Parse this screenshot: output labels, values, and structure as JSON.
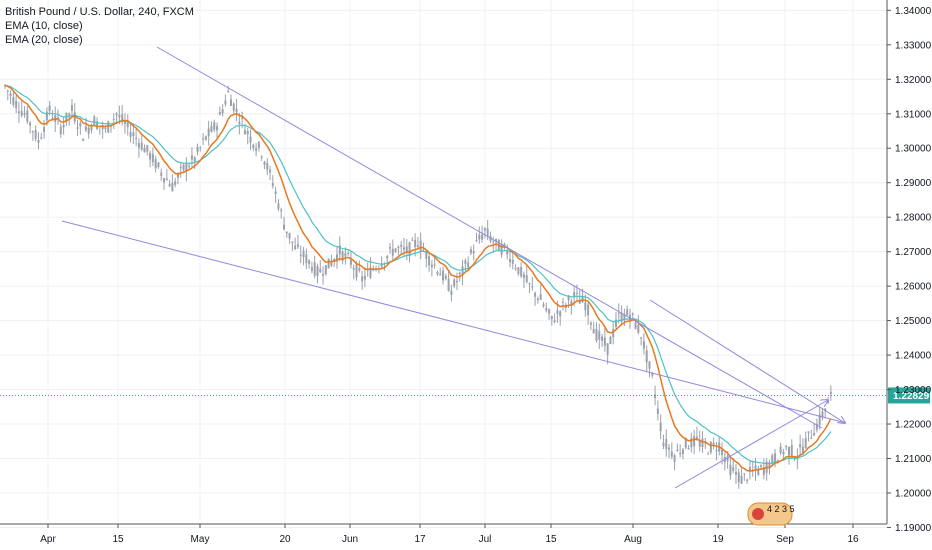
{
  "legend": {
    "symbol": "British Pound / U.S. Dollar, 240, FXCM",
    "ema10": "EMA (10, close)",
    "ema20": "EMA (20, close)"
  },
  "colors": {
    "grid": "#eef0f4",
    "axis_line": "#555555",
    "candle": "#9aa1ac",
    "ema10": "#e8791f",
    "ema20": "#4ec1c4",
    "trendline": "#9088e0",
    "price_line": "#26a69a",
    "price_tag": "#26a69a"
  },
  "badge": {
    "label": "4 2 3 5"
  },
  "chart_data": {
    "type": "candlestick",
    "title": "British Pound / U.S. Dollar, 240, FXCM",
    "indicators": [
      "EMA (10, close)",
      "EMA (20, close)"
    ],
    "ylim": [
      1.191,
      1.343
    ],
    "y_ticks": [
      "1.34000",
      "1.33000",
      "1.32000",
      "1.31000",
      "1.30000",
      "1.29000",
      "1.28000",
      "1.27000",
      "1.26000",
      "1.25000",
      "1.24000",
      "1.23000",
      "1.22000",
      "1.21000",
      "1.20000",
      "1.19000"
    ],
    "x_ticks": [
      "Apr",
      "15",
      "May",
      "20",
      "Jun",
      "17",
      "Jul",
      "15",
      "Aug",
      "19",
      "Sep",
      "16"
    ],
    "last_price": "1.22829",
    "price_path": [
      [
        0,
        1.318
      ],
      [
        1,
        1.313
      ],
      [
        2,
        1.309
      ],
      [
        3,
        1.302
      ],
      [
        4,
        1.311
      ],
      [
        5,
        1.306
      ],
      [
        6,
        1.311
      ],
      [
        7,
        1.304
      ],
      [
        8,
        1.308
      ],
      [
        9,
        1.305
      ],
      [
        10,
        1.31
      ],
      [
        11,
        1.306
      ],
      [
        12,
        1.302
      ],
      [
        13,
        1.298
      ],
      [
        14,
        1.293
      ],
      [
        15,
        1.289
      ],
      [
        16,
        1.294
      ],
      [
        17,
        1.297
      ],
      [
        18,
        1.303
      ],
      [
        19,
        1.307
      ],
      [
        20,
        1.316
      ],
      [
        21,
        1.309
      ],
      [
        22,
        1.303
      ],
      [
        23,
        1.299
      ],
      [
        24,
        1.29
      ],
      [
        25,
        1.278
      ],
      [
        26,
        1.271
      ],
      [
        27,
        1.268
      ],
      [
        28,
        1.264
      ],
      [
        29,
        1.266
      ],
      [
        30,
        1.27
      ],
      [
        31,
        1.267
      ],
      [
        32,
        1.262
      ],
      [
        33,
        1.265
      ],
      [
        34,
        1.268
      ],
      [
        35,
        1.271
      ],
      [
        36,
        1.27
      ],
      [
        37,
        1.273
      ],
      [
        38,
        1.268
      ],
      [
        39,
        1.264
      ],
      [
        40,
        1.259
      ],
      [
        41,
        1.264
      ],
      [
        42,
        1.271
      ],
      [
        43,
        1.276
      ],
      [
        44,
        1.272
      ],
      [
        45,
        1.27
      ],
      [
        46,
        1.265
      ],
      [
        47,
        1.26
      ],
      [
        48,
        1.256
      ],
      [
        49,
        1.25
      ],
      [
        50,
        1.254
      ],
      [
        51,
        1.257
      ],
      [
        52,
        1.255
      ],
      [
        53,
        1.246
      ],
      [
        54,
        1.242
      ],
      [
        55,
        1.251
      ],
      [
        56,
        1.252
      ],
      [
        57,
        1.246
      ],
      [
        58,
        1.233
      ],
      [
        59,
        1.215
      ],
      [
        60,
        1.211
      ],
      [
        61,
        1.214
      ],
      [
        62,
        1.215
      ],
      [
        63,
        1.213
      ],
      [
        64,
        1.214
      ],
      [
        65,
        1.207
      ],
      [
        66,
        1.204
      ],
      [
        67,
        1.206
      ],
      [
        68,
        1.207
      ],
      [
        69,
        1.21
      ],
      [
        70,
        1.213
      ],
      [
        71,
        1.211
      ],
      [
        72,
        1.216
      ],
      [
        73,
        1.221
      ],
      [
        74,
        1.228
      ]
    ],
    "trendlines": [
      {
        "from": [
          1,
          1.3295
        ],
        "to": [
          78,
          1.2195
        ],
        "arrow": false
      },
      {
        "from": [
          1,
          1.278
        ],
        "to": [
          78,
          1.2195
        ],
        "arrow": false
      },
      {
        "from": [
          65,
          1.2008
        ],
        "to": [
          77,
          1.225
        ],
        "arrow": true
      },
      {
        "from": [
          71,
          1.226
        ],
        "to": [
          77,
          1.219
        ],
        "arrow": true
      },
      {
        "from": [
          71,
          1.226
        ],
        "to": [
          78,
          1.219
        ],
        "arrow": true
      }
    ],
    "grid": true,
    "legend_position": "top-left"
  }
}
